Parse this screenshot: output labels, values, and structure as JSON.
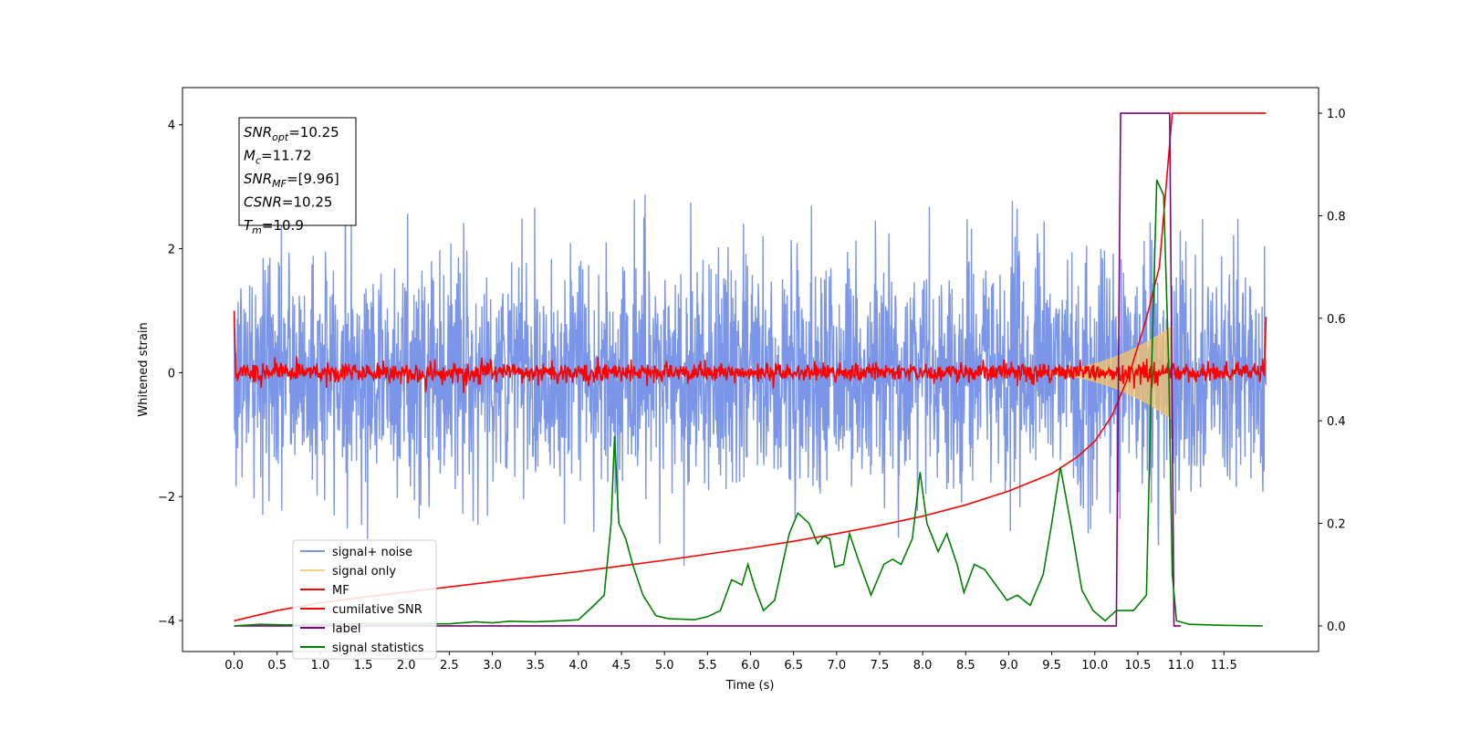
{
  "chart_data": {
    "type": "line",
    "xlabel": "Time (s)",
    "ylabel": "Whitened strain",
    "xlim": [
      -0.6,
      12.6
    ],
    "ylim": [
      -4.5,
      4.6
    ],
    "ylim_right": [
      -0.05,
      1.05
    ],
    "x_ticks": [
      0.0,
      0.5,
      1.0,
      1.5,
      2.0,
      2.5,
      3.0,
      3.5,
      4.0,
      4.5,
      5.0,
      5.5,
      6.0,
      6.5,
      7.0,
      7.5,
      8.0,
      8.5,
      9.0,
      9.5,
      10.0,
      10.5,
      11.0,
      11.5
    ],
    "x_tick_labels": [
      "0.0",
      "0.5",
      "1.0",
      "1.5",
      "2.0",
      "2.5",
      "3.0",
      "3.5",
      "4.0",
      "4.5",
      "5.0",
      "5.5",
      "6.0",
      "6.5",
      "7.0",
      "7.5",
      "8.0",
      "8.5",
      "9.0",
      "9.5",
      "10.0",
      "10.5",
      "11.0",
      "11.5"
    ],
    "y_ticks_left": [
      -4,
      -2,
      0,
      2,
      4
    ],
    "y_tick_labels_left": [
      "−4",
      "−2",
      "0",
      "2",
      "4"
    ],
    "y_ticks_right": [
      0.0,
      0.2,
      0.4,
      0.6,
      0.8,
      1.0
    ],
    "y_tick_labels_right": [
      "0.0",
      "0.2",
      "0.4",
      "0.6",
      "0.8",
      "1.0"
    ],
    "grid": false,
    "legend_placement": "lower-left",
    "series": [
      {
        "name": "signal+ noise",
        "axis": "left",
        "color": "#7b96e8",
        "description": "whitened noise plus chirp signal",
        "x_range": [
          0.0,
          11.99
        ],
        "noise_std": 0.95,
        "envelope_peak_time": 10.9
      },
      {
        "name": "signal only",
        "axis": "left",
        "color": "#f5c46a",
        "x_range": [
          0.0,
          11.99
        ],
        "chirp_start": 9.2,
        "chirp_end": 10.9,
        "peak_amplitude": 0.75
      },
      {
        "name": "MF",
        "axis": "left",
        "color": "#ff0000",
        "x_range": [
          0.0,
          11.99
        ],
        "noise_std": 0.08
      },
      {
        "name": "cumilative SNR",
        "axis": "right",
        "color": "#ff0000",
        "points": [
          [
            0.0,
            0.01
          ],
          [
            0.5,
            0.03
          ],
          [
            1.0,
            0.045
          ],
          [
            1.5,
            0.056
          ],
          [
            2.0,
            0.066
          ],
          [
            2.5,
            0.076
          ],
          [
            3.0,
            0.086
          ],
          [
            3.5,
            0.096
          ],
          [
            4.0,
            0.106
          ],
          [
            4.5,
            0.117
          ],
          [
            5.0,
            0.128
          ],
          [
            5.5,
            0.14
          ],
          [
            6.0,
            0.152
          ],
          [
            6.5,
            0.165
          ],
          [
            7.0,
            0.18
          ],
          [
            7.5,
            0.196
          ],
          [
            8.0,
            0.214
          ],
          [
            8.5,
            0.236
          ],
          [
            9.0,
            0.263
          ],
          [
            9.5,
            0.297
          ],
          [
            9.8,
            0.33
          ],
          [
            10.0,
            0.36
          ],
          [
            10.2,
            0.41
          ],
          [
            10.4,
            0.49
          ],
          [
            10.6,
            0.6
          ],
          [
            10.75,
            0.7
          ],
          [
            10.9,
            1.0
          ],
          [
            11.99,
            1.0
          ]
        ]
      },
      {
        "name": "label",
        "axis": "right",
        "color": "#800080",
        "points": [
          [
            0.0,
            0.0
          ],
          [
            10.25,
            0.0
          ],
          [
            10.3,
            1.0
          ],
          [
            10.87,
            1.0
          ],
          [
            10.92,
            0.0
          ],
          [
            11.0,
            0.0
          ]
        ]
      },
      {
        "name": "signal statistics",
        "axis": "right",
        "color": "#008000",
        "points": [
          [
            0.0,
            0.0
          ],
          [
            0.3,
            0.003
          ],
          [
            0.6,
            0.002
          ],
          [
            1.0,
            0.003
          ],
          [
            1.5,
            0.004
          ],
          [
            2.0,
            0.004
          ],
          [
            2.5,
            0.004
          ],
          [
            2.8,
            0.008
          ],
          [
            3.0,
            0.006
          ],
          [
            3.2,
            0.009
          ],
          [
            3.5,
            0.008
          ],
          [
            3.8,
            0.01
          ],
          [
            4.0,
            0.012
          ],
          [
            4.15,
            0.035
          ],
          [
            4.3,
            0.06
          ],
          [
            4.38,
            0.2
          ],
          [
            4.42,
            0.37
          ],
          [
            4.47,
            0.2
          ],
          [
            4.55,
            0.17
          ],
          [
            4.63,
            0.12
          ],
          [
            4.75,
            0.06
          ],
          [
            4.9,
            0.02
          ],
          [
            5.05,
            0.014
          ],
          [
            5.2,
            0.013
          ],
          [
            5.35,
            0.012
          ],
          [
            5.5,
            0.018
          ],
          [
            5.65,
            0.03
          ],
          [
            5.78,
            0.09
          ],
          [
            5.9,
            0.08
          ],
          [
            5.97,
            0.12
          ],
          [
            6.05,
            0.075
          ],
          [
            6.15,
            0.03
          ],
          [
            6.28,
            0.05
          ],
          [
            6.45,
            0.18
          ],
          [
            6.55,
            0.22
          ],
          [
            6.68,
            0.2
          ],
          [
            6.78,
            0.16
          ],
          [
            6.85,
            0.175
          ],
          [
            6.92,
            0.17
          ],
          [
            6.98,
            0.115
          ],
          [
            7.08,
            0.12
          ],
          [
            7.15,
            0.18
          ],
          [
            7.25,
            0.13
          ],
          [
            7.4,
            0.06
          ],
          [
            7.55,
            0.12
          ],
          [
            7.65,
            0.13
          ],
          [
            7.75,
            0.12
          ],
          [
            7.88,
            0.17
          ],
          [
            7.97,
            0.3
          ],
          [
            8.05,
            0.2
          ],
          [
            8.18,
            0.145
          ],
          [
            8.28,
            0.18
          ],
          [
            8.4,
            0.12
          ],
          [
            8.48,
            0.065
          ],
          [
            8.6,
            0.12
          ],
          [
            8.72,
            0.11
          ],
          [
            8.85,
            0.08
          ],
          [
            8.98,
            0.05
          ],
          [
            9.1,
            0.06
          ],
          [
            9.25,
            0.04
          ],
          [
            9.4,
            0.1
          ],
          [
            9.5,
            0.2
          ],
          [
            9.6,
            0.31
          ],
          [
            9.72,
            0.2
          ],
          [
            9.85,
            0.07
          ],
          [
            9.98,
            0.03
          ],
          [
            10.12,
            0.01
          ],
          [
            10.25,
            0.03
          ],
          [
            10.45,
            0.03
          ],
          [
            10.6,
            0.06
          ],
          [
            10.66,
            0.5
          ],
          [
            10.72,
            0.87
          ],
          [
            10.8,
            0.84
          ],
          [
            10.86,
            0.5
          ],
          [
            10.9,
            0.1
          ],
          [
            10.95,
            0.01
          ],
          [
            11.1,
            0.003
          ],
          [
            11.5,
            0.001
          ],
          [
            11.95,
            0.0
          ]
        ]
      }
    ],
    "annotations": [
      {
        "base": "SNR",
        "sub": "opt",
        "value": "=10.25"
      },
      {
        "base": "M",
        "sub": "c",
        "value": "=11.72"
      },
      {
        "base": "SNR",
        "sub": "MF",
        "value": "=[9.96]"
      },
      {
        "base": "CSNR",
        "sub": "",
        "value": "=10.25"
      },
      {
        "base": "T",
        "sub": "m",
        "value": "=10.9"
      }
    ]
  }
}
